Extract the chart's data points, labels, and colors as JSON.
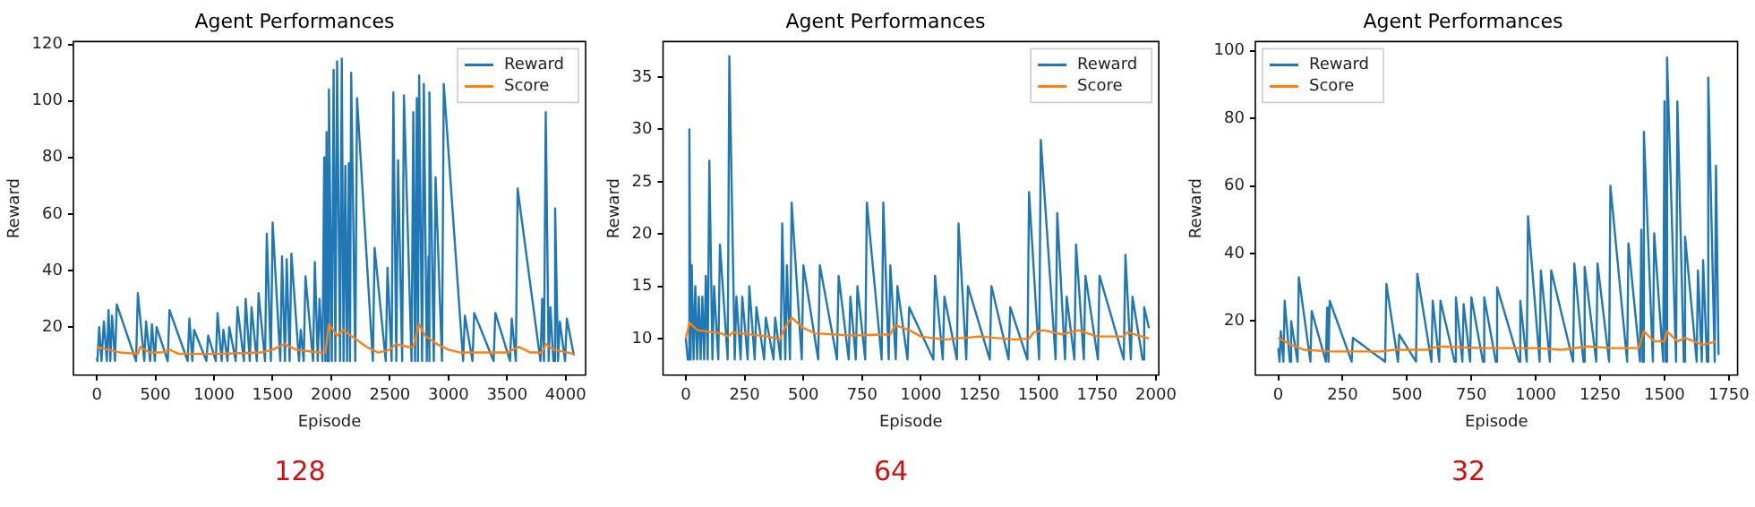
{
  "chart_data": [
    {
      "type": "line",
      "title": "Agent Performances",
      "xlabel": "Episode",
      "ylabel": "Reward",
      "xlim": [
        -200,
        4170
      ],
      "xticks": [
        0,
        500,
        1000,
        1500,
        2000,
        2500,
        3000,
        3500,
        4000
      ],
      "ylim": [
        3,
        121
      ],
      "yticks": [
        20,
        40,
        60,
        80,
        100,
        120
      ],
      "grid": false,
      "legend": "top right",
      "annotations": [
        "128"
      ],
      "series": [
        {
          "name": "Reward",
          "color": "#1f77b4",
          "x": [
            0,
            5,
            20,
            40,
            60,
            85,
            100,
            115,
            130,
            155,
            170,
            335,
            350,
            405,
            420,
            455,
            470,
            495,
            510,
            605,
            620,
            775,
            790,
            815,
            830,
            935,
            950,
            1015,
            1030,
            1065,
            1080,
            1115,
            1130,
            1185,
            1200,
            1255,
            1270,
            1305,
            1320,
            1365,
            1380,
            1435,
            1450,
            1485,
            1500,
            1565,
            1580,
            1605,
            1620,
            1645,
            1660,
            1725,
            1740,
            1765,
            1780,
            1845,
            1860,
            1885,
            1900,
            1925,
            1940,
            1950,
            1960,
            1970,
            1980,
            2005,
            2020,
            2035,
            2050,
            2075,
            2090,
            2105,
            2120,
            2135,
            2150,
            2160,
            2170,
            2205,
            2220,
            2355,
            2370,
            2465,
            2480,
            2515,
            2530,
            2555,
            2570,
            2605,
            2620,
            2685,
            2700,
            2715,
            2730,
            2740,
            2750,
            2775,
            2790,
            2815,
            2830,
            2835,
            2840,
            2875,
            2890,
            2945,
            2960,
            3125,
            3140,
            3205,
            3220,
            3385,
            3400,
            3525,
            3540,
            3575,
            3590,
            3785,
            3800,
            3815,
            3830,
            3855,
            3870,
            3895,
            3910,
            3935,
            3950,
            3995,
            4010,
            4070
          ],
          "values": [
            9,
            8,
            20,
            8,
            22,
            8,
            26,
            8,
            24,
            8,
            28,
            8,
            32,
            8,
            22,
            8,
            21,
            8,
            20,
            8,
            26,
            8,
            23,
            8,
            19,
            8,
            17,
            8,
            25,
            8,
            19,
            8,
            20,
            8,
            27,
            8,
            30,
            8,
            27,
            8,
            32,
            8,
            53,
            8,
            57,
            8,
            45,
            8,
            44,
            8,
            46,
            8,
            19,
            8,
            38,
            8,
            43,
            8,
            30,
            8,
            80,
            8,
            89,
            8,
            104,
            8,
            111,
            8,
            114,
            8,
            115,
            8,
            77,
            8,
            78,
            8,
            110,
            8,
            101,
            8,
            48,
            8,
            41,
            8,
            103,
            8,
            79,
            8,
            102,
            8,
            96,
            8,
            101,
            8,
            109,
            8,
            106,
            8,
            45,
            8,
            103,
            8,
            73,
            8,
            106,
            8,
            24,
            8,
            25,
            8,
            25,
            8,
            23,
            8,
            69,
            8,
            30,
            8,
            96,
            8,
            27,
            8,
            62,
            8,
            22,
            8,
            23,
            10
          ]
        },
        {
          "name": "Score",
          "color": "#ff7f0e",
          "x": [
            0,
            100,
            200,
            350,
            370,
            450,
            550,
            620,
            700,
            1000,
            1400,
            1500,
            1600,
            1700,
            1900,
            1950,
            1980,
            2050,
            2100,
            2200,
            2300,
            2400,
            2500,
            2550,
            2650,
            2700,
            2750,
            2800,
            2900,
            3000,
            3100,
            3500,
            3600,
            3700,
            3800,
            3830,
            3900,
            4070
          ],
          "values": [
            13,
            12,
            11,
            10.5,
            13,
            11,
            11,
            12,
            10.5,
            10.5,
            11,
            12,
            14,
            12,
            11,
            11,
            21,
            17,
            19,
            16,
            13,
            11,
            12,
            14,
            13,
            13,
            21,
            17,
            14,
            12,
            11,
            11,
            13,
            11,
            11,
            14,
            12,
            10.5
          ]
        }
      ]
    },
    {
      "type": "line",
      "title": "Agent Performances",
      "xlabel": "Episode",
      "ylabel": "Reward",
      "xlim": [
        -97,
        2012
      ],
      "xticks": [
        0,
        250,
        500,
        750,
        1000,
        1250,
        1500,
        1750,
        2000
      ],
      "ylim": [
        6.5,
        38.4
      ],
      "yticks": [
        10,
        15,
        20,
        25,
        30,
        35
      ],
      "grid": false,
      "legend": "top right",
      "annotations": [
        "64"
      ],
      "series": [
        {
          "name": "Reward",
          "color": "#1f77b4",
          "x": [
            0,
            8,
            15,
            20,
            25,
            33,
            40,
            48,
            55,
            63,
            70,
            78,
            85,
            93,
            100,
            113,
            120,
            138,
            145,
            178,
            185,
            208,
            215,
            233,
            240,
            263,
            270,
            293,
            300,
            333,
            340,
            373,
            380,
            403,
            410,
            423,
            430,
            443,
            450,
            493,
            500,
            563,
            570,
            643,
            650,
            693,
            700,
            723,
            730,
            763,
            770,
            833,
            840,
            863,
            870,
            893,
            900,
            943,
            950,
            1053,
            1060,
            1093,
            1100,
            1153,
            1160,
            1193,
            1200,
            1293,
            1300,
            1373,
            1380,
            1453,
            1460,
            1503,
            1510,
            1573,
            1580,
            1613,
            1620,
            1653,
            1660,
            1693,
            1700,
            1753,
            1760,
            1863,
            1870,
            1893,
            1900,
            1943,
            1950,
            1970
          ],
          "values": [
            10,
            8,
            30,
            8,
            17,
            8,
            15,
            8,
            14,
            8,
            14,
            8,
            16,
            8,
            27,
            8,
            15,
            8,
            19,
            8,
            37,
            8,
            14,
            8,
            14,
            8,
            15,
            8,
            13,
            8,
            12,
            8,
            12,
            8,
            21,
            8,
            17,
            8,
            23,
            8,
            17,
            8,
            17,
            8,
            16,
            8,
            14,
            8,
            15,
            8,
            23,
            8,
            23,
            8,
            17,
            8,
            15,
            8,
            13,
            8,
            16,
            8,
            14,
            8,
            21,
            8,
            15,
            8,
            15,
            8,
            13,
            8,
            24,
            8,
            29,
            8,
            22,
            8,
            14,
            8,
            19,
            8,
            16,
            8,
            16,
            8,
            18,
            8,
            14,
            8,
            13,
            11
          ]
        },
        {
          "name": "Score",
          "color": "#ff7f0e",
          "x": [
            0,
            15,
            50,
            150,
            180,
            200,
            350,
            400,
            420,
            450,
            500,
            550,
            700,
            870,
            890,
            950,
            1000,
            1100,
            1250,
            1400,
            1460,
            1480,
            1520,
            1600,
            1670,
            1750,
            1860,
            1880,
            1970
          ],
          "values": [
            10,
            11.5,
            10.8,
            10.5,
            10.2,
            10.6,
            10.2,
            9.9,
            11,
            12,
            11,
            10.5,
            10.3,
            10.4,
            11.3,
            10.8,
            10.2,
            9.9,
            10.2,
            9.9,
            10,
            10.6,
            10.8,
            10.4,
            10.8,
            10.2,
            10.2,
            10.6,
            10
          ]
        }
      ]
    },
    {
      "type": "line",
      "title": "Agent Performances",
      "xlabel": "Episode",
      "ylabel": "Reward",
      "xlim": [
        -89,
        1784
      ],
      "xticks": [
        0,
        250,
        500,
        750,
        1000,
        1250,
        1500,
        1750
      ],
      "ylim": [
        4,
        102.7
      ],
      "yticks": [
        20,
        40,
        60,
        80,
        100
      ],
      "grid": false,
      "legend": "top left",
      "annotations": [
        "32"
      ],
      "series": [
        {
          "name": "Reward",
          "color": "#1f77b4",
          "x": [
            0,
            5,
            10,
            20,
            25,
            45,
            50,
            75,
            80,
            125,
            130,
            185,
            190,
            195,
            200,
            285,
            290,
            415,
            420,
            465,
            470,
            535,
            540,
            595,
            600,
            625,
            630,
            685,
            690,
            715,
            720,
            745,
            750,
            795,
            800,
            845,
            850,
            935,
            940,
            965,
            970,
            1015,
            1020,
            1055,
            1060,
            1145,
            1150,
            1185,
            1190,
            1235,
            1240,
            1285,
            1290,
            1355,
            1360,
            1405,
            1410,
            1415,
            1420,
            1455,
            1460,
            1495,
            1500,
            1505,
            1510,
            1545,
            1550,
            1575,
            1580,
            1625,
            1630,
            1645,
            1650,
            1665,
            1670,
            1695,
            1700,
            1710
          ],
          "values": [
            12,
            8,
            17,
            8,
            26,
            8,
            20,
            8,
            33,
            8,
            23,
            8,
            24,
            8,
            26,
            8,
            15,
            8,
            31,
            8,
            16,
            8,
            34,
            8,
            26,
            8,
            26,
            8,
            27,
            8,
            25,
            8,
            27,
            8,
            27,
            8,
            30,
            8,
            26,
            8,
            51,
            8,
            35,
            8,
            35,
            8,
            37,
            8,
            36,
            8,
            37,
            8,
            60,
            8,
            43,
            8,
            47,
            8,
            76,
            8,
            46,
            8,
            85,
            8,
            98,
            8,
            85,
            8,
            45,
            8,
            35,
            8,
            38,
            8,
            92,
            8,
            66,
            10
          ]
        },
        {
          "name": "Score",
          "color": "#ff7f0e",
          "x": [
            0,
            50,
            100,
            200,
            400,
            450,
            580,
            620,
            800,
            1000,
            1100,
            1200,
            1300,
            1400,
            1420,
            1460,
            1500,
            1510,
            1550,
            1580,
            1650,
            1700
          ],
          "values": [
            15,
            13,
            11.5,
            11,
            11,
            11.5,
            11.5,
            12.5,
            12,
            12,
            11.5,
            12.5,
            12,
            12,
            17,
            14,
            14,
            17,
            14,
            15,
            13,
            14
          ]
        }
      ]
    }
  ]
}
